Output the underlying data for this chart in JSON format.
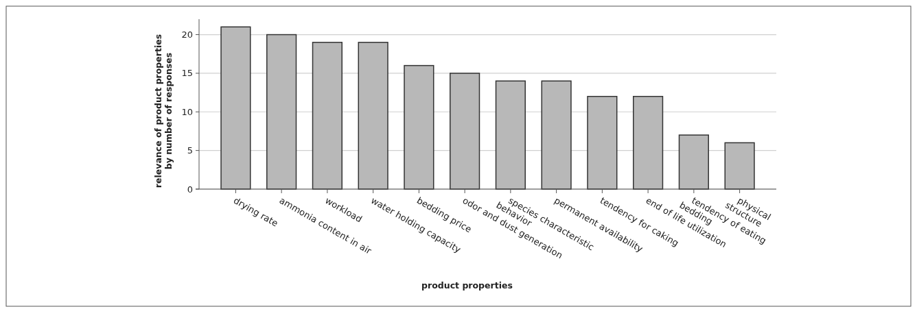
{
  "chart_data": {
    "type": "bar",
    "xlabel": "product properties",
    "ylabel": "relevance of product properties\nby number of responses",
    "categories": [
      "drying rate",
      "ammonia content in air",
      "workload",
      "water holding capacity",
      "bedding price",
      "odor and dust generation",
      "species characteristic\nbehavior",
      "permanent availability",
      "tendency for caking",
      "end of life utilization",
      "tendency of eating\nbedding",
      "physical\nstructure"
    ],
    "values": [
      21,
      20,
      19,
      19,
      16,
      15,
      14,
      14,
      12,
      12,
      7,
      6
    ],
    "color": "#b8b8b8",
    "ylim": [
      0,
      22
    ],
    "yticks": [
      0,
      5,
      10,
      15,
      20
    ],
    "grid": "y"
  }
}
